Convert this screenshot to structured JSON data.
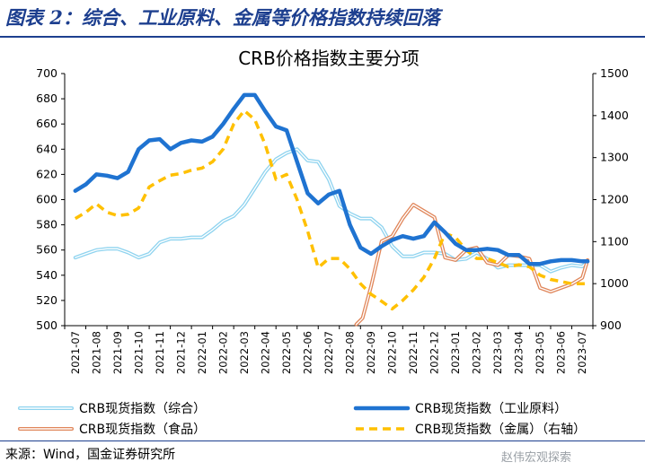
{
  "header": {
    "figure_title": "图表 2：综合、工业原料、金属等价格指数持续回落"
  },
  "footer": {
    "source": "来源：Wind，国金证券研究所",
    "watermark": "赵伟宏观探索"
  },
  "colors": {
    "composite": "#8ed3ef",
    "industrial": "#1f73d1",
    "food": "#e0865a",
    "metals": "#ffc000",
    "brand": "#1d3f8f"
  },
  "chart_data": {
    "type": "line",
    "title": "CRB价格指数主要分项",
    "x_labels": [
      "2021-07",
      "2021-08",
      "2021-09",
      "2021-10",
      "2021-11",
      "2021-12",
      "2022-01",
      "2022-02",
      "2022-03",
      "2022-04",
      "2022-05",
      "2022-06",
      "2022-07",
      "2022-08",
      "2022-09",
      "2022-10",
      "2022-11",
      "2022-12",
      "2023-01",
      "2023-02",
      "2023-03",
      "2023-04",
      "2023-05",
      "2023-06",
      "2023-07"
    ],
    "y_left": {
      "min": 500,
      "max": 700,
      "ticks": [
        500,
        520,
        540,
        560,
        580,
        600,
        620,
        640,
        660,
        680,
        700
      ]
    },
    "y_right": {
      "min": 900,
      "max": 1500,
      "ticks": [
        900,
        1000,
        1100,
        1200,
        1300,
        1400,
        1500
      ]
    },
    "series": [
      {
        "name": "CRB现货指数（综合）",
        "key": "composite",
        "axis": "left",
        "style": "double",
        "x": [
          0,
          0.5,
          1,
          1.5,
          2,
          2.5,
          3,
          3.5,
          4,
          4.5,
          5,
          5.5,
          6,
          6.5,
          7,
          7.5,
          8,
          8.5,
          9,
          9.5,
          10,
          10.5,
          11,
          11.5,
          12,
          12.5,
          13,
          13.5,
          14,
          14.5,
          15,
          15.5,
          16,
          16.5,
          17,
          17.5,
          18,
          18.5,
          19,
          19.5,
          20,
          20.5,
          21,
          21.5,
          22,
          22.5,
          23,
          23.5,
          24,
          24.25
        ],
        "values": [
          554,
          557,
          560,
          561,
          561,
          558,
          554,
          557,
          566,
          569,
          569,
          570,
          570,
          576,
          583,
          587,
          596,
          609,
          622,
          632,
          637,
          640,
          631,
          630,
          616,
          595,
          589,
          585,
          585,
          578,
          563,
          555,
          555,
          558,
          558,
          557,
          552,
          553,
          558,
          553,
          546,
          548,
          548,
          548,
          548,
          543,
          546,
          548,
          547,
          551
        ]
      },
      {
        "name": "CRB现货指数（工业原料）",
        "key": "industrial",
        "axis": "left",
        "style": "thick",
        "x": [
          0,
          0.5,
          1,
          1.5,
          2,
          2.5,
          3,
          3.5,
          4,
          4.5,
          5,
          5.5,
          6,
          6.5,
          7,
          7.5,
          8,
          8.5,
          9,
          9.5,
          10,
          10.5,
          11,
          11.5,
          12,
          12.5,
          13,
          13.5,
          14,
          14.5,
          15,
          15.5,
          16,
          16.5,
          17,
          17.5,
          18,
          18.5,
          19,
          19.5,
          20,
          20.5,
          21,
          21.5,
          22,
          22.5,
          23,
          23.5,
          24,
          24.25
        ],
        "values": [
          607,
          612,
          620,
          619,
          617,
          622,
          640,
          647,
          648,
          640,
          645,
          647,
          646,
          650,
          660,
          672,
          683,
          683,
          670,
          658,
          655,
          630,
          605,
          597,
          604,
          607,
          580,
          562,
          557,
          563,
          568,
          571,
          569,
          571,
          582,
          574,
          565,
          560,
          560,
          561,
          560,
          556,
          556,
          549,
          549,
          551,
          552,
          552,
          551,
          551
        ]
      },
      {
        "name": "CRB现货指数（食品）",
        "key": "food",
        "axis": "left",
        "style": "double",
        "x": [
          13.3,
          13.6,
          14,
          14.5,
          15,
          15.5,
          16,
          16.5,
          17,
          17.5,
          18,
          18.5,
          19,
          19.5,
          20,
          20.5,
          21,
          21.5,
          22,
          22.5,
          23,
          23.5,
          24,
          24.25
        ],
        "values": [
          501,
          506,
          531,
          567,
          571,
          585,
          596,
          591,
          586,
          554,
          552,
          560,
          562,
          550,
          548,
          556,
          555,
          553,
          530,
          527,
          530,
          533,
          538,
          552
        ]
      },
      {
        "name": "CRB现货指数（金属）（右轴）",
        "key": "metals",
        "axis": "right",
        "style": "dashed",
        "x": [
          0,
          0.5,
          1,
          1.5,
          2,
          2.5,
          3,
          3.5,
          4,
          4.5,
          5,
          5.5,
          6,
          6.5,
          7,
          7.5,
          8,
          8.5,
          9,
          9.5,
          10,
          10.5,
          11,
          11.5,
          12,
          12.5,
          13,
          13.5,
          14,
          14.5,
          15,
          15.5,
          16,
          16.5,
          17,
          17.5,
          18,
          18.5,
          19,
          19.5,
          20,
          20.5,
          21,
          21.5,
          22,
          22.5,
          23,
          23.5,
          24,
          24.25
        ],
        "values": [
          1155,
          1170,
          1190,
          1170,
          1162,
          1165,
          1180,
          1230,
          1245,
          1258,
          1262,
          1270,
          1275,
          1290,
          1320,
          1380,
          1412,
          1390,
          1330,
          1248,
          1260,
          1200,
          1125,
          1038,
          1060,
          1060,
          1035,
          1000,
          975,
          958,
          940,
          960,
          985,
          1015,
          1060,
          1120,
          1110,
          1080,
          1060,
          1060,
          1050,
          1040,
          1045,
          1040,
          1020,
          1010,
          1005,
          1000,
          1000,
          1000
        ]
      }
    ],
    "legend": [
      {
        "label": "CRB现货指数（综合）",
        "key": "composite",
        "style": "double"
      },
      {
        "label": "CRB现货指数（工业原料）",
        "key": "industrial",
        "style": "thick"
      },
      {
        "label": "CRB现货指数（食品）",
        "key": "food",
        "style": "double"
      },
      {
        "label": "CRB现货指数（金属）（右轴）",
        "key": "metals",
        "style": "dashed"
      }
    ]
  }
}
